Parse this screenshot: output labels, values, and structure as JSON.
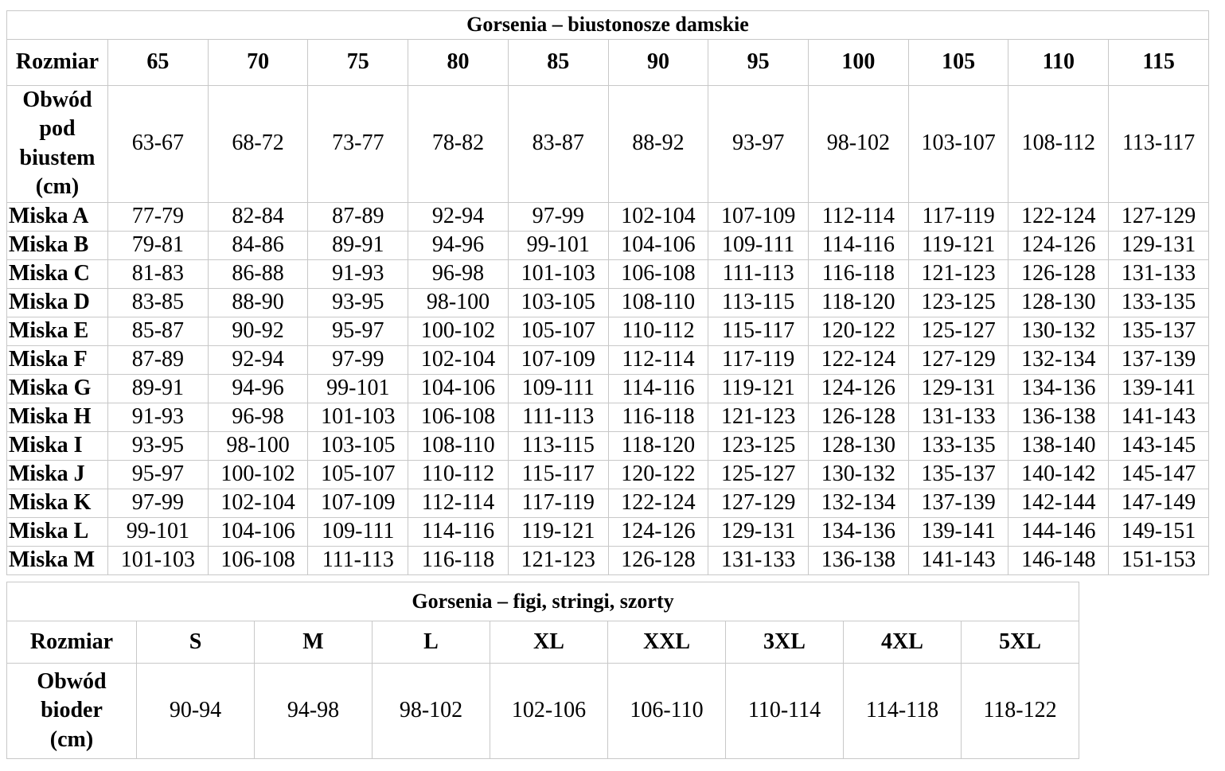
{
  "bra_table": {
    "title": "Gorsenia – biustonosze damskie",
    "size_label": "Rozmiar",
    "sizes": [
      "65",
      "70",
      "75",
      "80",
      "85",
      "90",
      "95",
      "100",
      "105",
      "110",
      "115"
    ],
    "underbust_label": "Obwód pod biustem (cm)",
    "underbust": [
      "63-67",
      "68-72",
      "73-77",
      "78-82",
      "83-87",
      "88-92",
      "93-97",
      "98-102",
      "103-107",
      "108-112",
      "113-117"
    ],
    "cups": [
      {
        "label": "Miska A",
        "values": [
          "77-79",
          "82-84",
          "87-89",
          "92-94",
          "97-99",
          "102-104",
          "107-109",
          "112-114",
          "117-119",
          "122-124",
          "127-129"
        ]
      },
      {
        "label": "Miska B",
        "values": [
          "79-81",
          "84-86",
          "89-91",
          "94-96",
          "99-101",
          "104-106",
          "109-111",
          "114-116",
          "119-121",
          "124-126",
          "129-131"
        ]
      },
      {
        "label": "Miska C",
        "values": [
          "81-83",
          "86-88",
          "91-93",
          "96-98",
          "101-103",
          "106-108",
          "111-113",
          "116-118",
          "121-123",
          "126-128",
          "131-133"
        ]
      },
      {
        "label": "Miska D",
        "values": [
          "83-85",
          "88-90",
          "93-95",
          "98-100",
          "103-105",
          "108-110",
          "113-115",
          "118-120",
          "123-125",
          "128-130",
          "133-135"
        ]
      },
      {
        "label": "Miska E",
        "values": [
          "85-87",
          "90-92",
          "95-97",
          "100-102",
          "105-107",
          "110-112",
          "115-117",
          "120-122",
          "125-127",
          "130-132",
          "135-137"
        ]
      },
      {
        "label": "Miska F",
        "values": [
          "87-89",
          "92-94",
          "97-99",
          "102-104",
          "107-109",
          "112-114",
          "117-119",
          "122-124",
          "127-129",
          "132-134",
          "137-139"
        ]
      },
      {
        "label": "Miska G",
        "values": [
          "89-91",
          "94-96",
          "99-101",
          "104-106",
          "109-111",
          "114-116",
          "119-121",
          "124-126",
          "129-131",
          "134-136",
          "139-141"
        ]
      },
      {
        "label": "Miska H",
        "values": [
          "91-93",
          "96-98",
          "101-103",
          "106-108",
          "111-113",
          "116-118",
          "121-123",
          "126-128",
          "131-133",
          "136-138",
          "141-143"
        ]
      },
      {
        "label": "Miska I",
        "values": [
          "93-95",
          "98-100",
          "103-105",
          "108-110",
          "113-115",
          "118-120",
          "123-125",
          "128-130",
          "133-135",
          "138-140",
          "143-145"
        ]
      },
      {
        "label": "Miska J",
        "values": [
          "95-97",
          "100-102",
          "105-107",
          "110-112",
          "115-117",
          "120-122",
          "125-127",
          "130-132",
          "135-137",
          "140-142",
          "145-147"
        ]
      },
      {
        "label": "Miska K",
        "values": [
          "97-99",
          "102-104",
          "107-109",
          "112-114",
          "117-119",
          "122-124",
          "127-129",
          "132-134",
          "137-139",
          "142-144",
          "147-149"
        ]
      },
      {
        "label": "Miska L",
        "values": [
          "99-101",
          "104-106",
          "109-111",
          "114-116",
          "119-121",
          "124-126",
          "129-131",
          "134-136",
          "139-141",
          "144-146",
          "149-151"
        ]
      },
      {
        "label": "Miska M",
        "values": [
          "101-103",
          "106-108",
          "111-113",
          "116-118",
          "121-123",
          "126-128",
          "131-133",
          "136-138",
          "141-143",
          "146-148",
          "151-153"
        ]
      }
    ]
  },
  "briefs_table": {
    "title": "Gorsenia – figi, stringi, szorty",
    "size_label": "Rozmiar",
    "sizes": [
      "S",
      "M",
      "L",
      "XL",
      "XXL",
      "3XL",
      "4XL",
      "5XL"
    ],
    "hip_label": "Obwód bioder (cm)",
    "hips": [
      "90-94",
      "94-98",
      "98-102",
      "102-106",
      "106-110",
      "110-114",
      "114-118",
      "118-122"
    ]
  }
}
